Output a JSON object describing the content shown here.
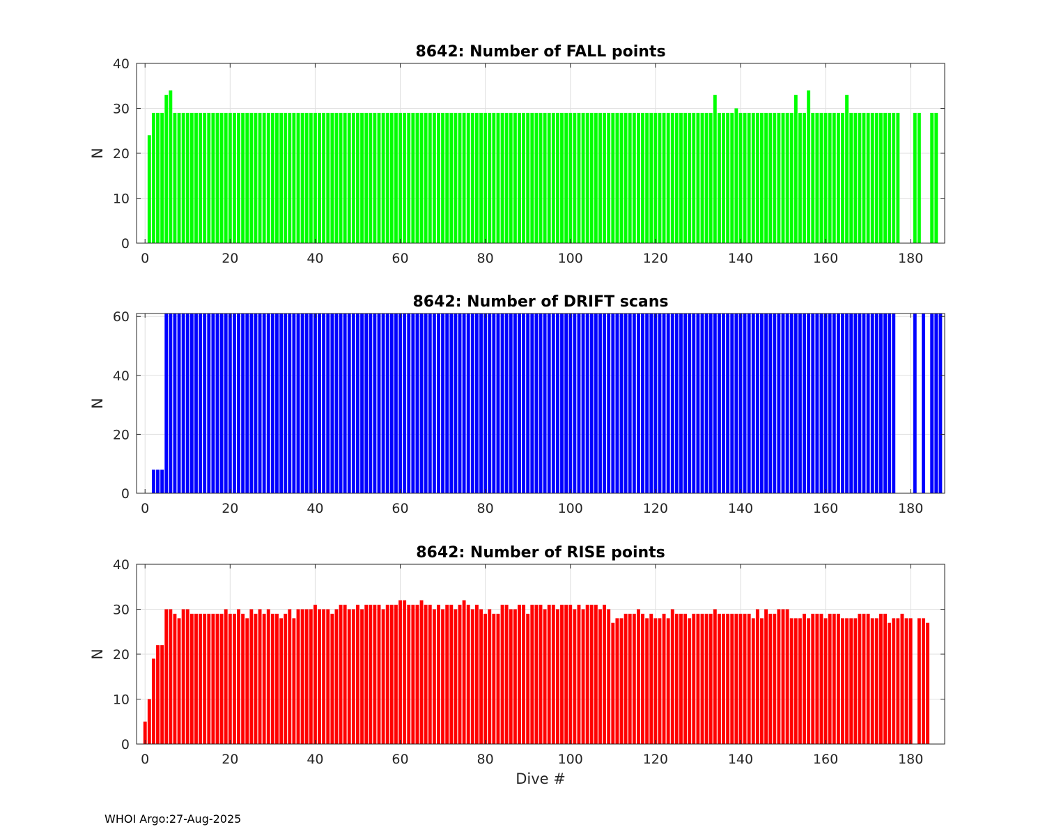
{
  "footer": "WHOI Argo:27-Aug-2025",
  "chart_data": [
    {
      "type": "bar",
      "title": "8642: Number of FALL points",
      "ylabel": "N",
      "xlabel": "",
      "color": "#00ff00",
      "xlim": [
        -2,
        188
      ],
      "ylim": [
        0,
        40
      ],
      "xticks": [
        0,
        20,
        40,
        60,
        80,
        100,
        120,
        140,
        160,
        180
      ],
      "yticks": [
        0,
        10,
        20,
        30,
        40
      ],
      "grid": true,
      "x_start": 1,
      "values": [
        24,
        29,
        29,
        29,
        33,
        34,
        29,
        29,
        29,
        29,
        29,
        29,
        29,
        29,
        29,
        29,
        29,
        29,
        29,
        29,
        29,
        29,
        29,
        29,
        29,
        29,
        29,
        29,
        29,
        29,
        29,
        29,
        29,
        29,
        29,
        29,
        29,
        29,
        29,
        29,
        29,
        29,
        29,
        29,
        29,
        29,
        29,
        29,
        29,
        29,
        29,
        29,
        29,
        29,
        29,
        29,
        29,
        29,
        29,
        29,
        29,
        29,
        29,
        29,
        29,
        29,
        29,
        29,
        29,
        29,
        29,
        29,
        29,
        29,
        29,
        29,
        29,
        29,
        29,
        29,
        29,
        29,
        29,
        29,
        29,
        29,
        29,
        29,
        29,
        29,
        29,
        29,
        29,
        29,
        29,
        29,
        29,
        29,
        29,
        29,
        29,
        29,
        29,
        29,
        29,
        29,
        29,
        29,
        29,
        29,
        29,
        29,
        29,
        29,
        29,
        29,
        29,
        29,
        29,
        29,
        29,
        29,
        29,
        29,
        29,
        29,
        29,
        29,
        29,
        29,
        29,
        29,
        29,
        33,
        29,
        29,
        29,
        29,
        30,
        29,
        29,
        29,
        29,
        29,
        29,
        29,
        29,
        29,
        29,
        29,
        29,
        29,
        33,
        29,
        29,
        34,
        29,
        29,
        29,
        29,
        29,
        29,
        29,
        29,
        33,
        29,
        29,
        29,
        29,
        29,
        29,
        29,
        29,
        29,
        29,
        29,
        29,
        null,
        null,
        null,
        29,
        29,
        null,
        null,
        29,
        29
      ]
    },
    {
      "type": "bar",
      "title": "8642: Number of DRIFT scans",
      "ylabel": "N",
      "xlabel": "",
      "color": "#0000ff",
      "xlim": [
        -2,
        188
      ],
      "ylim": [
        0,
        61
      ],
      "xticks": [
        0,
        20,
        40,
        60,
        80,
        100,
        120,
        140,
        160,
        180
      ],
      "yticks": [
        0,
        20,
        40,
        60
      ],
      "grid": true,
      "x_start": 1,
      "values": [
        null,
        8,
        8,
        8,
        61,
        61,
        61,
        61,
        61,
        61,
        61,
        61,
        61,
        61,
        61,
        61,
        61,
        61,
        61,
        61,
        61,
        61,
        61,
        61,
        61,
        61,
        61,
        61,
        61,
        61,
        61,
        61,
        61,
        61,
        61,
        61,
        61,
        61,
        61,
        61,
        61,
        61,
        61,
        61,
        61,
        61,
        61,
        61,
        61,
        61,
        61,
        61,
        61,
        61,
        61,
        61,
        61,
        61,
        61,
        61,
        61,
        61,
        61,
        61,
        61,
        61,
        61,
        61,
        61,
        61,
        61,
        61,
        61,
        61,
        61,
        61,
        61,
        61,
        61,
        61,
        61,
        61,
        61,
        61,
        61,
        61,
        61,
        61,
        61,
        61,
        61,
        61,
        61,
        61,
        61,
        61,
        61,
        61,
        61,
        61,
        61,
        61,
        61,
        61,
        61,
        61,
        61,
        61,
        61,
        61,
        61,
        61,
        61,
        61,
        61,
        61,
        61,
        61,
        61,
        61,
        61,
        61,
        61,
        61,
        61,
        61,
        61,
        61,
        61,
        61,
        61,
        61,
        61,
        61,
        61,
        61,
        61,
        61,
        61,
        61,
        61,
        61,
        61,
        61,
        61,
        61,
        61,
        61,
        61,
        61,
        61,
        61,
        61,
        61,
        61,
        61,
        61,
        61,
        61,
        61,
        61,
        61,
        61,
        61,
        61,
        61,
        61,
        61,
        61,
        61,
        61,
        61,
        61,
        61,
        61,
        61,
        null,
        null,
        null,
        null,
        61,
        null,
        61,
        null,
        61,
        61,
        61
      ]
    },
    {
      "type": "bar",
      "title": "8642: Number of RISE points",
      "ylabel": "N",
      "xlabel": "Dive #",
      "color": "#ff0000",
      "xlim": [
        -2,
        188
      ],
      "ylim": [
        0,
        40
      ],
      "xticks": [
        0,
        20,
        40,
        60,
        80,
        100,
        120,
        140,
        160,
        180
      ],
      "yticks": [
        0,
        10,
        20,
        30,
        40
      ],
      "grid": true,
      "x_start": 0,
      "values": [
        5,
        10,
        19,
        22,
        22,
        30,
        30,
        29,
        28,
        30,
        30,
        29,
        29,
        29,
        29,
        29,
        29,
        29,
        29,
        30,
        29,
        29,
        30,
        29,
        28,
        30,
        29,
        30,
        29,
        30,
        29,
        29,
        28,
        29,
        30,
        28,
        30,
        30,
        30,
        30,
        31,
        30,
        30,
        30,
        29,
        30,
        31,
        31,
        30,
        30,
        31,
        30,
        31,
        31,
        31,
        31,
        30,
        31,
        31,
        31,
        32,
        32,
        31,
        31,
        31,
        32,
        31,
        31,
        30,
        31,
        30,
        31,
        31,
        30,
        31,
        32,
        31,
        30,
        31,
        30,
        29,
        30,
        29,
        29,
        31,
        31,
        30,
        30,
        31,
        31,
        29,
        31,
        31,
        31,
        30,
        31,
        31,
        30,
        31,
        31,
        31,
        30,
        31,
        30,
        31,
        31,
        31,
        30,
        31,
        30,
        27,
        28,
        28,
        29,
        29,
        29,
        30,
        29,
        28,
        29,
        28,
        28,
        29,
        28,
        30,
        29,
        29,
        29,
        28,
        29,
        29,
        29,
        29,
        29,
        30,
        29,
        29,
        29,
        29,
        29,
        29,
        29,
        29,
        28,
        30,
        28,
        30,
        29,
        29,
        30,
        30,
        30,
        28,
        28,
        28,
        29,
        28,
        29,
        29,
        29,
        28,
        29,
        29,
        29,
        28,
        28,
        28,
        28,
        29,
        29,
        29,
        28,
        28,
        29,
        29,
        27,
        28,
        28,
        29,
        28,
        28,
        null,
        28,
        28,
        27
      ]
    }
  ]
}
